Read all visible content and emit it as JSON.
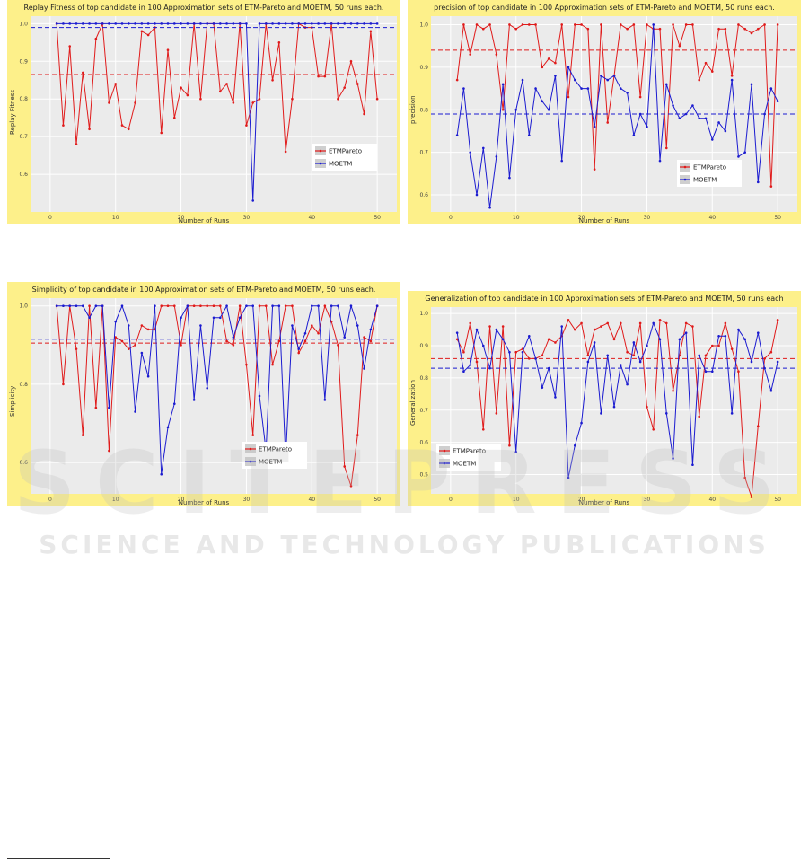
{
  "chart_data": [
    {
      "type": "line",
      "title": "Replay Fitness of top candidate in 100 Approximation sets of ETM-Pareto and MOETM, 50 runs each.",
      "xlabel": "Number of Runs",
      "ylabel": "Replay Fitness",
      "xlim": [
        -3,
        53
      ],
      "ylim": [
        0.5,
        1.02
      ],
      "yticks": [
        0.6,
        0.7,
        0.8,
        0.9,
        1.0
      ],
      "ytick_labels": [
        "0.6",
        "0.7",
        "0.8",
        "0.9",
        "1.0"
      ],
      "xticks": [
        0,
        10,
        20,
        30,
        40,
        50
      ],
      "legend_position": "right",
      "series": [
        {
          "name": "ETMPareto",
          "color": "#e01b1b",
          "mean": 0.865,
          "values": [
            1.0,
            0.73,
            0.94,
            0.68,
            0.87,
            0.72,
            0.96,
            1.0,
            0.79,
            0.84,
            0.73,
            0.72,
            0.79,
            0.98,
            0.97,
            0.99,
            0.71,
            0.93,
            0.75,
            0.83,
            0.81,
            1.0,
            0.8,
            1.0,
            1.0,
            0.82,
            0.84,
            0.79,
            1.0,
            0.73,
            0.79,
            0.8,
            1.0,
            0.85,
            0.95,
            0.66,
            0.8,
            1.0,
            0.99,
            0.99,
            0.86,
            0.86,
            1.0,
            0.8,
            0.83,
            0.9,
            0.84,
            0.76,
            0.98,
            0.8
          ]
        },
        {
          "name": "MOETM",
          "color": "#1b1bd0",
          "mean": 0.99,
          "values": [
            1.0,
            1.0,
            1.0,
            1.0,
            1.0,
            1.0,
            1.0,
            1.0,
            1.0,
            1.0,
            1.0,
            1.0,
            1.0,
            1.0,
            1.0,
            1.0,
            1.0,
            1.0,
            1.0,
            1.0,
            1.0,
            1.0,
            1.0,
            1.0,
            1.0,
            1.0,
            1.0,
            1.0,
            1.0,
            1.0,
            0.53,
            1.0,
            1.0,
            1.0,
            1.0,
            1.0,
            1.0,
            1.0,
            1.0,
            1.0,
            1.0,
            1.0,
            1.0,
            1.0,
            1.0,
            1.0,
            1.0,
            1.0,
            1.0,
            1.0
          ]
        }
      ]
    },
    {
      "type": "line",
      "title": "precision of top candidate in 100 Approximation sets of ETM-Pareto and MOETM, 50 runs each.",
      "xlabel": "Number of Runs",
      "ylabel": "precision",
      "xlim": [
        -3,
        53
      ],
      "ylim": [
        0.56,
        1.02
      ],
      "yticks": [
        0.6,
        0.7,
        0.8,
        0.9,
        1.0
      ],
      "ytick_labels": [
        "0.6",
        "0.7",
        "0.8",
        "0.9",
        "1.0"
      ],
      "xticks": [
        0,
        10,
        20,
        30,
        40,
        50
      ],
      "legend_position": "right",
      "series": [
        {
          "name": "ETMPareto",
          "color": "#e01b1b",
          "mean": 0.94,
          "values": [
            0.87,
            1.0,
            0.93,
            1.0,
            0.99,
            1.0,
            0.93,
            0.8,
            1.0,
            0.99,
            1.0,
            1.0,
            1.0,
            0.9,
            0.92,
            0.91,
            1.0,
            0.83,
            1.0,
            1.0,
            0.99,
            0.66,
            1.0,
            0.77,
            0.88,
            1.0,
            0.99,
            1.0,
            0.83,
            1.0,
            0.99,
            0.99,
            0.71,
            1.0,
            0.95,
            1.0,
            1.0,
            0.87,
            0.91,
            0.89,
            0.99,
            0.99,
            0.88,
            1.0,
            0.99,
            0.98,
            0.99,
            1.0,
            0.62,
            1.0
          ]
        },
        {
          "name": "MOETM",
          "color": "#1b1bd0",
          "mean": 0.79,
          "values": [
            0.74,
            0.85,
            0.7,
            0.6,
            0.71,
            0.57,
            0.69,
            0.86,
            0.64,
            0.8,
            0.87,
            0.74,
            0.85,
            0.82,
            0.8,
            0.88,
            0.68,
            0.9,
            0.87,
            0.85,
            0.85,
            0.76,
            0.88,
            0.87,
            0.88,
            0.85,
            0.84,
            0.74,
            0.79,
            0.76,
            1.0,
            0.68,
            0.86,
            0.81,
            0.78,
            0.79,
            0.81,
            0.78,
            0.78,
            0.73,
            0.77,
            0.75,
            0.87,
            0.69,
            0.7,
            0.86,
            0.63,
            0.79,
            0.85,
            0.82
          ]
        }
      ]
    },
    {
      "type": "line",
      "title": "Simplicity of top candidate in 100 Approximation sets of ETM-Pareto and MOETM, 50 runs each.",
      "xlabel": "Number of Runs",
      "ylabel": "Simplicity",
      "xlim": [
        -3,
        53
      ],
      "ylim": [
        0.52,
        1.02
      ],
      "yticks": [
        0.6,
        0.8,
        1.0
      ],
      "ytick_labels": [
        "0.6",
        "0.8",
        "1.0"
      ],
      "xticks": [
        0,
        10,
        20,
        30,
        40,
        50
      ],
      "legend_position": "right",
      "series": [
        {
          "name": "ETMPareto",
          "color": "#e01b1b",
          "mean": 0.905,
          "values": [
            1.0,
            0.8,
            1.0,
            0.89,
            0.67,
            1.0,
            0.74,
            1.0,
            0.63,
            0.92,
            0.91,
            0.89,
            0.9,
            0.95,
            0.94,
            0.94,
            1.0,
            1.0,
            1.0,
            0.9,
            1.0,
            1.0,
            1.0,
            1.0,
            1.0,
            1.0,
            0.91,
            0.9,
            1.0,
            0.85,
            0.67,
            1.0,
            1.0,
            0.85,
            0.91,
            1.0,
            1.0,
            0.88,
            0.91,
            0.95,
            0.93,
            1.0,
            0.96,
            0.9,
            0.59,
            0.54,
            0.67,
            0.92,
            0.91,
            1.0
          ]
        },
        {
          "name": "MOETM",
          "color": "#1b1bd0",
          "mean": 0.915,
          "values": [
            1.0,
            1.0,
            1.0,
            1.0,
            1.0,
            0.97,
            1.0,
            1.0,
            0.74,
            0.96,
            1.0,
            0.95,
            0.73,
            0.88,
            0.82,
            1.0,
            0.57,
            0.69,
            0.75,
            0.97,
            1.0,
            0.76,
            0.95,
            0.79,
            0.97,
            0.97,
            1.0,
            0.92,
            0.97,
            1.0,
            1.0,
            0.77,
            0.63,
            1.0,
            1.0,
            0.61,
            0.95,
            0.89,
            0.93,
            1.0,
            1.0,
            0.76,
            1.0,
            1.0,
            0.92,
            1.0,
            0.95,
            0.84,
            0.94,
            1.0
          ]
        }
      ]
    },
    {
      "type": "line",
      "title": "Generalization of top candidate in 100 Approximation sets of ETM-Pareto and MOETM, 50 runs each",
      "xlabel": "Number of Runs",
      "ylabel": "Generalization",
      "xlim": [
        -3,
        53
      ],
      "ylim": [
        0.44,
        1.02
      ],
      "yticks": [
        0.5,
        0.6,
        0.7,
        0.8,
        0.9,
        1.0
      ],
      "ytick_labels": [
        "0.5",
        "0.6",
        "0.7",
        "0.8",
        "0.9",
        "1.0"
      ],
      "xticks": [
        0,
        10,
        20,
        30,
        40,
        50
      ],
      "legend_position": "left",
      "series": [
        {
          "name": "ETMPareto",
          "color": "#e01b1b",
          "mean": 0.86,
          "values": [
            0.92,
            0.88,
            0.97,
            0.85,
            0.64,
            0.96,
            0.69,
            0.96,
            0.59,
            0.88,
            0.89,
            0.86,
            0.86,
            0.87,
            0.92,
            0.91,
            0.93,
            0.98,
            0.95,
            0.97,
            0.87,
            0.95,
            0.96,
            0.97,
            0.92,
            0.97,
            0.88,
            0.87,
            0.97,
            0.71,
            0.64,
            0.98,
            0.97,
            0.76,
            0.87,
            0.97,
            0.96,
            0.68,
            0.87,
            0.9,
            0.9,
            0.97,
            0.89,
            0.82,
            0.49,
            0.43,
            0.65,
            0.86,
            0.88,
            0.98
          ]
        },
        {
          "name": "MOETM",
          "color": "#1b1bd0",
          "mean": 0.83,
          "values": [
            0.94,
            0.82,
            0.84,
            0.95,
            0.9,
            0.83,
            0.95,
            0.92,
            0.88,
            0.57,
            0.88,
            0.93,
            0.86,
            0.77,
            0.83,
            0.74,
            0.96,
            0.49,
            0.59,
            0.66,
            0.85,
            0.91,
            0.69,
            0.87,
            0.71,
            0.84,
            0.78,
            0.91,
            0.85,
            0.9,
            0.97,
            0.92,
            0.69,
            0.55,
            0.92,
            0.94,
            0.53,
            0.87,
            0.82,
            0.82,
            0.93,
            0.93,
            0.69,
            0.95,
            0.92,
            0.85,
            0.94,
            0.83,
            0.76,
            0.85
          ]
        }
      ]
    }
  ],
  "watermark": {
    "big": "SCITEPRESS",
    "small": "SCIENCE AND TECHNOLOGY PUBLICATIONS"
  }
}
